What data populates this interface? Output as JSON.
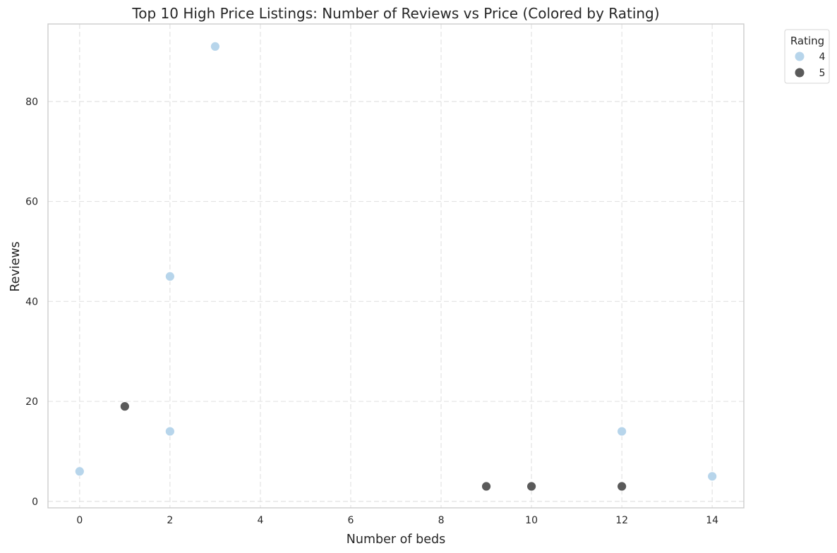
{
  "colors": {
    "rating_4": "#b7d5eb",
    "rating_5": "#5a5a5a",
    "background": "#ffffff"
  },
  "chart_data": {
    "type": "scatter",
    "title": "Top 10 High Price Listings: Number of Reviews vs Price (Colored by Rating)",
    "xlabel": "Number of beds",
    "ylabel": "Reviews",
    "xlim": [
      -0.7,
      14.7
    ],
    "ylim": [
      -1.3,
      95.5
    ],
    "x_ticks": [
      0,
      2,
      4,
      6,
      8,
      10,
      12,
      14
    ],
    "y_ticks": [
      0,
      20,
      40,
      60,
      80
    ],
    "grid": true,
    "legend": {
      "title": "Rating",
      "position": "outside-top-right",
      "entries": [
        {
          "label": "4",
          "color": "#b7d5eb"
        },
        {
          "label": "5",
          "color": "#5a5a5a"
        }
      ]
    },
    "series": [
      {
        "name": "4",
        "color": "#b7d5eb",
        "points": [
          {
            "x": 0,
            "y": 6
          },
          {
            "x": 2,
            "y": 14
          },
          {
            "x": 2,
            "y": 45
          },
          {
            "x": 3,
            "y": 91
          },
          {
            "x": 12,
            "y": 14
          },
          {
            "x": 14,
            "y": 5
          }
        ]
      },
      {
        "name": "5",
        "color": "#5a5a5a",
        "points": [
          {
            "x": 1,
            "y": 19
          },
          {
            "x": 9,
            "y": 3
          },
          {
            "x": 10,
            "y": 3
          },
          {
            "x": 12,
            "y": 3
          }
        ]
      }
    ]
  }
}
